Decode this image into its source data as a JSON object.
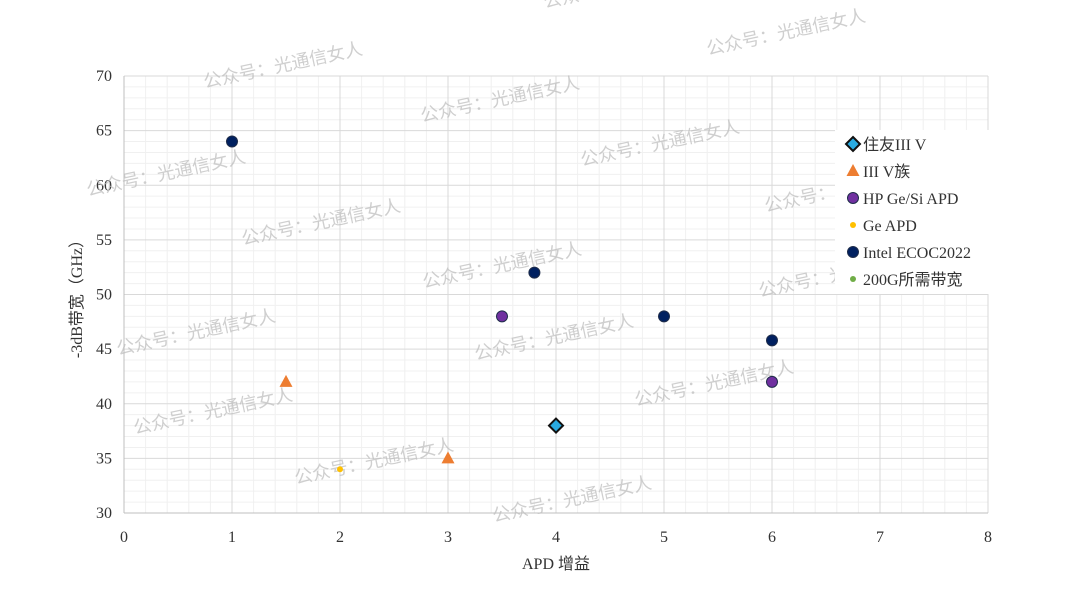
{
  "chart_data": {
    "type": "scatter",
    "x_label": "APD 增益",
    "y_label": "-3dB带宽（GHz）",
    "xlim": [
      0,
      8
    ],
    "xticks": [
      0,
      1,
      2,
      3,
      4,
      5,
      6,
      7,
      8
    ],
    "ylim": [
      30,
      70
    ],
    "yticks": [
      30,
      35,
      40,
      45,
      50,
      55,
      60,
      65,
      70
    ],
    "grid": true,
    "minor_grid": true,
    "legend": "right",
    "watermark": "公众号：光通信女人",
    "series": [
      {
        "name": "住友III V",
        "color": "#29abe2",
        "marker": "diamond",
        "x": [
          4
        ],
        "y": [
          38
        ]
      },
      {
        "name": "III V族",
        "color": "#ed7d31",
        "marker": "triangle",
        "x": [
          1.5,
          3
        ],
        "y": [
          42,
          35
        ]
      },
      {
        "name": "HP Ge/Si APD",
        "color": "#7030a0",
        "marker": "circle",
        "x": [
          3.5,
          6
        ],
        "y": [
          48,
          42
        ]
      },
      {
        "name": "Ge APD",
        "color": "#ffc000",
        "marker": "small",
        "x": [
          2
        ],
        "y": [
          34
        ]
      },
      {
        "name": "Intel ECOC2022",
        "color": "#002060",
        "marker": "circle",
        "x": [
          1,
          3.8,
          5,
          6
        ],
        "y": [
          64,
          52,
          48,
          45.8
        ]
      },
      {
        "name": "200G所需带宽",
        "color": "#70ad47",
        "marker": "small",
        "x": [],
        "y": []
      }
    ]
  }
}
